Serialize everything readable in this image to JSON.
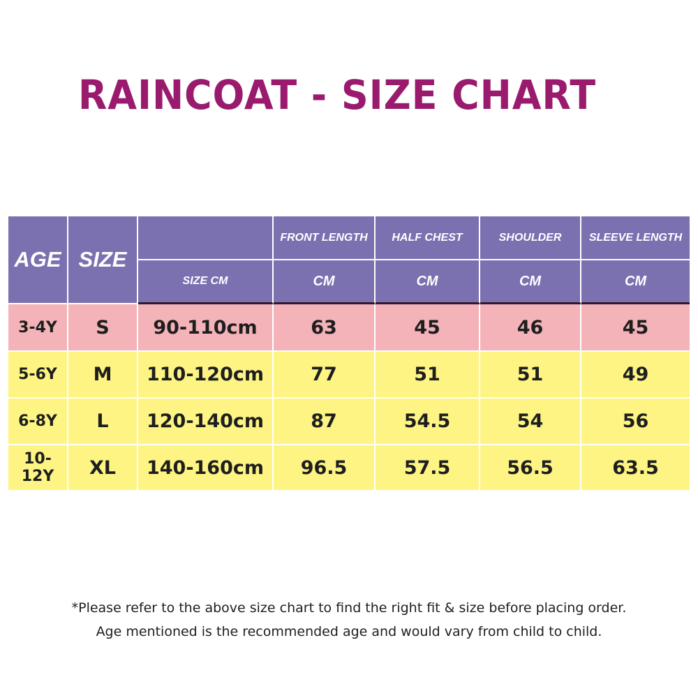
{
  "title": "RAINCOAT - SIZE CHART",
  "header": {
    "age": "AGE",
    "size": "SIZE",
    "size_cm": "SIZE CM",
    "columns": [
      "FRONT LENGTH",
      "HALF CHEST",
      "SHOULDER",
      "SLEEVE LENGTH"
    ],
    "units": [
      "CM",
      "CM",
      "CM",
      "CM"
    ]
  },
  "rows": [
    {
      "age": "3-4Y",
      "size": "S",
      "size_cm": "90-110cm",
      "values": [
        "63",
        "45",
        "46",
        "45"
      ]
    },
    {
      "age": "5-6Y",
      "size": "M",
      "size_cm": "110-120cm",
      "values": [
        "77",
        "51",
        "51",
        "49"
      ]
    },
    {
      "age": "6-8Y",
      "size": "L",
      "size_cm": "120-140cm",
      "values": [
        "87",
        "54.5",
        "54",
        "56"
      ]
    },
    {
      "age": "10-12Y",
      "size": "XL",
      "size_cm": "140-160cm",
      "values": [
        "96.5",
        "57.5",
        "56.5",
        "63.5"
      ]
    }
  ],
  "notes": [
    "*Please refer to the above size chart to find the right fit & size before placing order.",
    "Age mentioned is the recommended age and would vary from child to child."
  ],
  "colors": {
    "title": "#9a1b6e",
    "header_bg": "#7b70b0",
    "first_row_bg": "#f3b3b8",
    "other_rows_bg": "#fdf483"
  }
}
